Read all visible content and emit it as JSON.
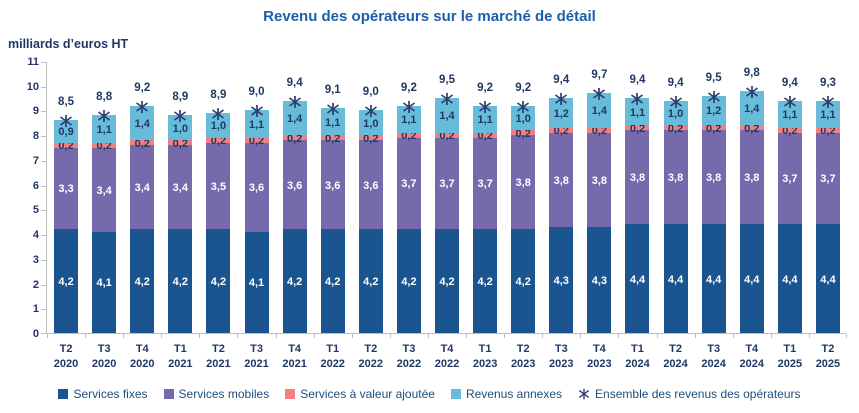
{
  "title": "Revenu des opérateurs sur le marché de détail",
  "y_axis_title": "milliards d’euros HT",
  "colors": {
    "title": "#1C5FA8",
    "text": "#1F3864",
    "legend_text": "#1F4E79",
    "axis": "#BFBFBF",
    "marker": "#2C3C6E"
  },
  "chart_data": {
    "type": "bar",
    "stacked": true,
    "grid": false,
    "legend_position": "bottom",
    "ylim": [
      0,
      11
    ],
    "y_ticks": [
      0,
      1,
      2,
      3,
      4,
      5,
      6,
      7,
      8,
      9,
      10,
      11
    ],
    "categories": [
      {
        "quarter": "T2",
        "year": "2020"
      },
      {
        "quarter": "T3",
        "year": "2020"
      },
      {
        "quarter": "T4",
        "year": "2020"
      },
      {
        "quarter": "T1",
        "year": "2021"
      },
      {
        "quarter": "T2",
        "year": "2021"
      },
      {
        "quarter": "T3",
        "year": "2021"
      },
      {
        "quarter": "T4",
        "year": "2021"
      },
      {
        "quarter": "T1",
        "year": "2022"
      },
      {
        "quarter": "T2",
        "year": "2022"
      },
      {
        "quarter": "T3",
        "year": "2022"
      },
      {
        "quarter": "T4",
        "year": "2022"
      },
      {
        "quarter": "T1",
        "year": "2023"
      },
      {
        "quarter": "T2",
        "year": "2023"
      },
      {
        "quarter": "T3",
        "year": "2023"
      },
      {
        "quarter": "T4",
        "year": "2023"
      },
      {
        "quarter": "T1",
        "year": "2024"
      },
      {
        "quarter": "T2",
        "year": "2024"
      },
      {
        "quarter": "T3",
        "year": "2024"
      },
      {
        "quarter": "T4",
        "year": "2024"
      },
      {
        "quarter": "T1",
        "year": "2025"
      },
      {
        "quarter": "T2",
        "year": "2025"
      }
    ],
    "series": [
      {
        "id": "services-fixes",
        "name": "Services fixes",
        "color": "#1A5590",
        "label_color": "#FFFFFF",
        "values": [
          4.2,
          4.1,
          4.2,
          4.2,
          4.2,
          4.1,
          4.2,
          4.2,
          4.2,
          4.2,
          4.2,
          4.2,
          4.2,
          4.3,
          4.3,
          4.4,
          4.4,
          4.4,
          4.4,
          4.4,
          4.4
        ]
      },
      {
        "id": "services-mobiles",
        "name": "Services mobiles",
        "color": "#7669AC",
        "label_color": "#FFFFFF",
        "values": [
          3.3,
          3.4,
          3.4,
          3.4,
          3.5,
          3.6,
          3.6,
          3.6,
          3.6,
          3.7,
          3.7,
          3.7,
          3.8,
          3.8,
          3.8,
          3.8,
          3.8,
          3.8,
          3.8,
          3.7,
          3.7
        ]
      },
      {
        "id": "services-valeur-ajoutee",
        "name": "Services à valeur ajoutée",
        "color": "#F37F80",
        "label_color": "#1F3864",
        "values": [
          0.2,
          0.2,
          0.2,
          0.2,
          0.2,
          0.2,
          0.2,
          0.2,
          0.2,
          0.2,
          0.2,
          0.2,
          0.2,
          0.2,
          0.2,
          0.2,
          0.2,
          0.2,
          0.2,
          0.2,
          0.2
        ]
      },
      {
        "id": "revenus-annexes",
        "name": "Revenus annexes",
        "color": "#66BCD9",
        "label_color": "#1F3864",
        "values": [
          0.9,
          1.1,
          1.4,
          1.0,
          1.0,
          1.1,
          1.4,
          1.1,
          1.0,
          1.1,
          1.4,
          1.1,
          1.0,
          1.2,
          1.4,
          1.1,
          1.0,
          1.2,
          1.4,
          1.1,
          1.1
        ]
      }
    ],
    "totals": {
      "id": "ensemble-revenus-operateurs",
      "name": "Ensemble des revenus des opérateurs",
      "marker": "asterisk",
      "values": [
        8.5,
        8.8,
        9.2,
        8.9,
        8.9,
        9.0,
        9.4,
        9.1,
        9.0,
        9.2,
        9.5,
        9.2,
        9.2,
        9.4,
        9.7,
        9.4,
        9.4,
        9.5,
        9.8,
        9.4,
        9.3
      ]
    }
  }
}
